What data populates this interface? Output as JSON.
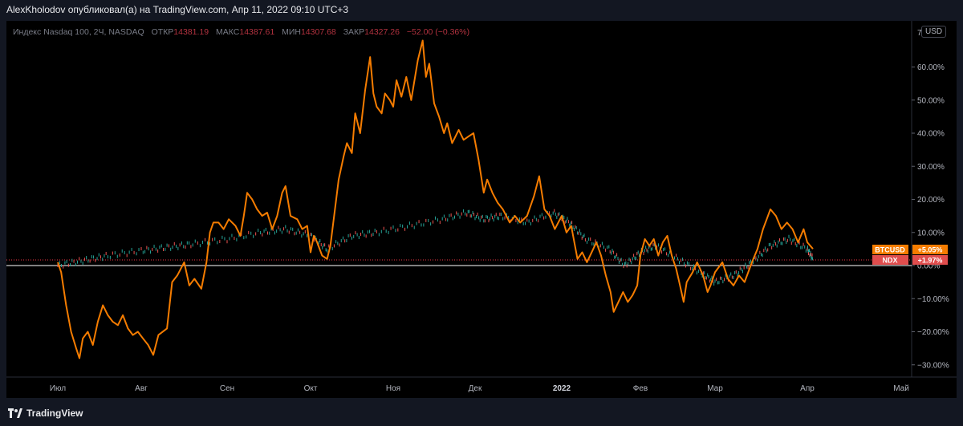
{
  "header": {
    "published_by": "AlexKholodov опубликовал(а) на TradingView.com, Апр 11, 2022 09:10 UTC+3"
  },
  "legend": {
    "title": "Индекс Nasdaq 100, 2Ч, NASDAQ",
    "open_label": "ОТКР",
    "open_value": "14381.19",
    "high_label": "МАКС",
    "high_value": "14387.61",
    "low_label": "МИН",
    "low_value": "14307.68",
    "close_label": "ЗАКР",
    "close_value": "14327.26",
    "change": "−52.00 (−0.36%)"
  },
  "currency_badge": "USD",
  "footer": {
    "brand": "TradingView"
  },
  "colors": {
    "btc": "#f57c00",
    "ndx_up": "#26a69a",
    "ndx_down": "#ef5350",
    "ndx_badge": "#e04d4d",
    "zero_line": "#ffffff",
    "dotted": "#f23645"
  },
  "chart_data": {
    "type": "line",
    "x_ticks": [
      "Июл",
      "Авг",
      "Сен",
      "Окт",
      "Ноя",
      "Дек",
      "2022",
      "Фев",
      "Мар",
      "Апр",
      "Май"
    ],
    "y_ticks": [
      "60.00%",
      "50.00%",
      "40.00%",
      "30.00%",
      "20.00%",
      "10.00%",
      "0.00%",
      "−10.00%",
      "−20.00%",
      "−30.00%"
    ],
    "ylim": [
      -33,
      70
    ],
    "y_unit": "%",
    "series": [
      {
        "name": "BTCUSD",
        "last_label": "+5.05%",
        "points": [
          [
            0,
            1
          ],
          [
            0.04,
            -2
          ],
          [
            0.1,
            -12
          ],
          [
            0.16,
            -20
          ],
          [
            0.22,
            -25
          ],
          [
            0.26,
            -28
          ],
          [
            0.3,
            -22
          ],
          [
            0.36,
            -20
          ],
          [
            0.42,
            -24
          ],
          [
            0.48,
            -17
          ],
          [
            0.54,
            -12
          ],
          [
            0.6,
            -15
          ],
          [
            0.66,
            -17
          ],
          [
            0.72,
            -18
          ],
          [
            0.78,
            -15
          ],
          [
            0.84,
            -19
          ],
          [
            0.9,
            -21
          ],
          [
            0.96,
            -20
          ],
          [
            1.02,
            -22
          ],
          [
            1.08,
            -24
          ],
          [
            1.14,
            -27
          ],
          [
            1.2,
            -21
          ],
          [
            1.3,
            -19
          ],
          [
            1.36,
            -5
          ],
          [
            1.42,
            -3
          ],
          [
            1.5,
            1
          ],
          [
            1.56,
            -6
          ],
          [
            1.62,
            -4
          ],
          [
            1.7,
            -7
          ],
          [
            1.76,
            1
          ],
          [
            1.8,
            10
          ],
          [
            1.84,
            13
          ],
          [
            1.9,
            13
          ],
          [
            1.96,
            11
          ],
          [
            2.02,
            14
          ],
          [
            2.1,
            12
          ],
          [
            2.16,
            9
          ],
          [
            2.2,
            15
          ],
          [
            2.24,
            22
          ],
          [
            2.3,
            20
          ],
          [
            2.36,
            17
          ],
          [
            2.42,
            15
          ],
          [
            2.48,
            16
          ],
          [
            2.54,
            11
          ],
          [
            2.6,
            15
          ],
          [
            2.66,
            22
          ],
          [
            2.7,
            24
          ],
          [
            2.76,
            15
          ],
          [
            2.84,
            14
          ],
          [
            2.9,
            11
          ],
          [
            2.96,
            12
          ],
          [
            3.0,
            4
          ],
          [
            3.04,
            9
          ],
          [
            3.08,
            7
          ],
          [
            3.14,
            3
          ],
          [
            3.2,
            2
          ],
          [
            3.24,
            6
          ],
          [
            3.3,
            18
          ],
          [
            3.34,
            26
          ],
          [
            3.4,
            33
          ],
          [
            3.44,
            37
          ],
          [
            3.5,
            34
          ],
          [
            3.54,
            46
          ],
          [
            3.6,
            40
          ],
          [
            3.66,
            53
          ],
          [
            3.72,
            63
          ],
          [
            3.76,
            52
          ],
          [
            3.8,
            48
          ],
          [
            3.86,
            46
          ],
          [
            3.9,
            52
          ],
          [
            3.96,
            50
          ],
          [
            4.0,
            48
          ],
          [
            4.04,
            56
          ],
          [
            4.1,
            51
          ],
          [
            4.16,
            57
          ],
          [
            4.22,
            50
          ],
          [
            4.3,
            62
          ],
          [
            4.36,
            68
          ],
          [
            4.4,
            57
          ],
          [
            4.44,
            61
          ],
          [
            4.5,
            49
          ],
          [
            4.56,
            45
          ],
          [
            4.62,
            40
          ],
          [
            4.66,
            43
          ],
          [
            4.72,
            37
          ],
          [
            4.8,
            41
          ],
          [
            4.86,
            38
          ],
          [
            4.92,
            39
          ],
          [
            4.98,
            40
          ],
          [
            5.04,
            32
          ],
          [
            5.1,
            22
          ],
          [
            5.14,
            26
          ],
          [
            5.2,
            22
          ],
          [
            5.26,
            19
          ],
          [
            5.32,
            17
          ],
          [
            5.4,
            13
          ],
          [
            5.46,
            15
          ],
          [
            5.52,
            13
          ],
          [
            5.6,
            15
          ],
          [
            5.68,
            21
          ],
          [
            5.74,
            27
          ],
          [
            5.8,
            17
          ],
          [
            5.86,
            15
          ],
          [
            5.92,
            11
          ],
          [
            6.0,
            15
          ],
          [
            6.06,
            10
          ],
          [
            6.12,
            12
          ],
          [
            6.2,
            2
          ],
          [
            6.26,
            4
          ],
          [
            6.32,
            1
          ],
          [
            6.4,
            5
          ],
          [
            6.44,
            7
          ],
          [
            6.5,
            3
          ],
          [
            6.56,
            -3
          ],
          [
            6.62,
            -8
          ],
          [
            6.66,
            -14
          ],
          [
            6.72,
            -11
          ],
          [
            6.78,
            -8
          ],
          [
            6.84,
            -11
          ],
          [
            6.9,
            -9
          ],
          [
            6.96,
            -6
          ],
          [
            7.0,
            3
          ],
          [
            7.06,
            8
          ],
          [
            7.12,
            6
          ],
          [
            7.18,
            8
          ],
          [
            7.24,
            3
          ],
          [
            7.3,
            7
          ],
          [
            7.36,
            9
          ],
          [
            7.42,
            3
          ],
          [
            7.48,
            -1
          ],
          [
            7.52,
            -5
          ],
          [
            7.58,
            -11
          ],
          [
            7.62,
            -5
          ],
          [
            7.7,
            -2
          ],
          [
            7.76,
            1
          ],
          [
            7.84,
            -3
          ],
          [
            7.9,
            -8
          ],
          [
            7.94,
            -6
          ],
          [
            8.0,
            -2
          ],
          [
            8.08,
            1
          ],
          [
            8.14,
            -4
          ],
          [
            8.2,
            -6
          ],
          [
            8.26,
            -3
          ],
          [
            8.32,
            -5
          ],
          [
            8.4,
            1
          ],
          [
            8.46,
            5
          ],
          [
            8.52,
            11
          ],
          [
            8.56,
            14
          ],
          [
            8.6,
            17
          ],
          [
            8.66,
            15
          ],
          [
            8.72,
            11
          ],
          [
            8.78,
            13
          ],
          [
            8.84,
            11
          ],
          [
            8.9,
            7
          ],
          [
            8.96,
            11
          ],
          [
            9.0,
            7
          ],
          [
            9.06,
            5.05
          ]
        ]
      },
      {
        "name": "NDX",
        "last_label": "+1.97%",
        "points": [
          [
            0,
            0
          ],
          [
            0.3,
            1.5
          ],
          [
            0.6,
            3
          ],
          [
            1.0,
            4.5
          ],
          [
            1.3,
            5.5
          ],
          [
            1.6,
            6.5
          ],
          [
            2.0,
            8
          ],
          [
            2.4,
            10
          ],
          [
            2.7,
            11
          ],
          [
            3.0,
            9
          ],
          [
            3.2,
            5
          ],
          [
            3.5,
            9
          ],
          [
            3.8,
            10
          ],
          [
            4.2,
            12
          ],
          [
            4.6,
            14
          ],
          [
            4.9,
            16
          ],
          [
            5.1,
            14
          ],
          [
            5.3,
            15
          ],
          [
            5.6,
            13
          ],
          [
            5.9,
            16
          ],
          [
            6.1,
            13
          ],
          [
            6.3,
            8
          ],
          [
            6.6,
            5
          ],
          [
            6.8,
            0
          ],
          [
            7.0,
            4
          ],
          [
            7.2,
            6
          ],
          [
            7.5,
            2
          ],
          [
            7.8,
            -2
          ],
          [
            8.0,
            -5
          ],
          [
            8.2,
            -3
          ],
          [
            8.4,
            1
          ],
          [
            8.6,
            6
          ],
          [
            8.8,
            8
          ],
          [
            9.0,
            5
          ],
          [
            9.06,
            1.97
          ]
        ]
      }
    ]
  }
}
